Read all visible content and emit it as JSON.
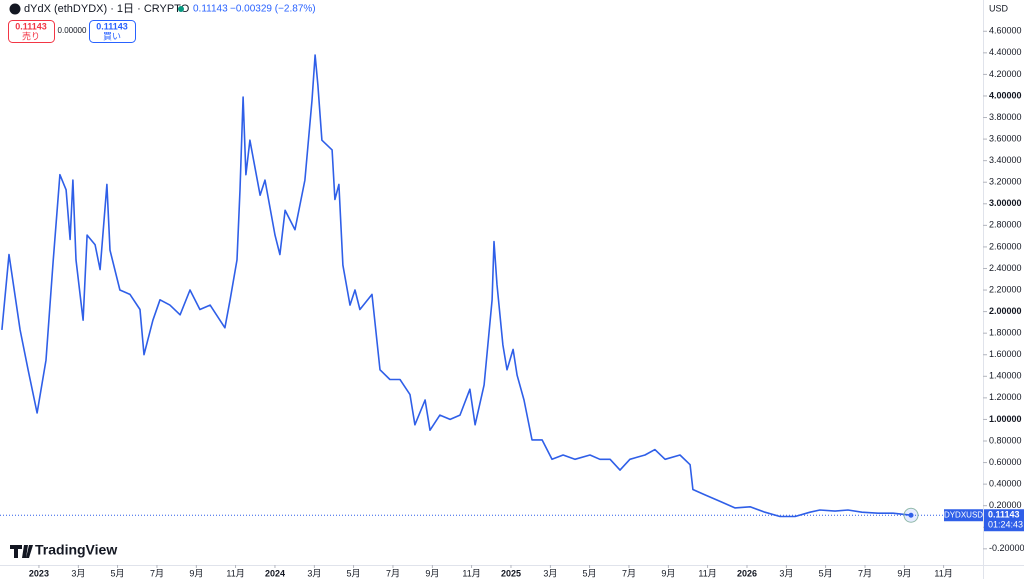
{
  "chart_data": {
    "type": "line",
    "title": "dYdX (ethDYDX) · 1日 · CRYPTO",
    "last_price": "0.11143",
    "change": "−0.00329 (−2.87%)",
    "sell_price": "0.11143",
    "sell_label": "売り",
    "spread": "0.00000",
    "buy_price": "0.11143",
    "buy_label": "買い",
    "currency": "USD",
    "symbol": "DYDXUSD",
    "countdown": "01:24:43",
    "brand": "TradingView",
    "series": [
      {
        "name": "DYDXUSD",
        "color": "#2f5fe8",
        "x": [
          2022.843,
          2022.873,
          2022.92,
          2022.954,
          2022.992,
          2023.03,
          2023.06,
          2023.089,
          2023.115,
          2023.132,
          2023.144,
          2023.157,
          2023.187,
          2023.204,
          2023.238,
          2023.259,
          2023.288,
          2023.301,
          2023.343,
          2023.386,
          2023.428,
          2023.445,
          2023.483,
          2023.513,
          2023.555,
          2023.598,
          2023.64,
          2023.682,
          2023.725,
          2023.788,
          2023.81,
          2023.839,
          2023.852,
          2023.865,
          2023.877,
          2023.894,
          2023.937,
          2023.958,
          2024.0,
          2024.021,
          2024.043,
          2024.085,
          2024.127,
          2024.157,
          2024.17,
          2024.182,
          2024.199,
          2024.242,
          2024.254,
          2024.271,
          2024.288,
          2024.318,
          2024.339,
          2024.36,
          2024.411,
          2024.445,
          2024.487,
          2024.53,
          2024.572,
          2024.593,
          2024.636,
          2024.657,
          2024.699,
          2024.742,
          2024.784,
          2024.826,
          2024.848,
          2024.886,
          2024.92,
          2024.928,
          2024.941,
          2024.966,
          2024.983,
          2025.009,
          2025.026,
          2025.055,
          2025.089,
          2025.132,
          2025.174,
          2025.221,
          2025.271,
          2025.335,
          2025.377,
          2025.42,
          2025.462,
          2025.504,
          2025.568,
          2025.61,
          2025.653,
          2025.716,
          2025.759,
          2025.771,
          2025.822,
          2025.886,
          2025.949,
          2026.013,
          2026.076,
          2026.14,
          2026.204,
          2026.267,
          2026.309,
          2026.373,
          2026.428,
          2026.487,
          2026.555,
          2026.619,
          2026.695
        ],
        "values": [
          1.83,
          2.53,
          1.83,
          1.46,
          1.06,
          1.55,
          2.46,
          3.27,
          3.13,
          2.67,
          3.22,
          2.48,
          1.92,
          2.71,
          2.62,
          2.39,
          3.18,
          2.57,
          2.2,
          2.16,
          2.02,
          1.6,
          1.92,
          2.11,
          2.06,
          1.97,
          2.2,
          2.02,
          2.06,
          1.85,
          2.11,
          2.48,
          3.13,
          3.99,
          3.27,
          3.59,
          3.08,
          3.22,
          2.71,
          2.53,
          2.94,
          2.76,
          3.22,
          3.96,
          4.38,
          4.1,
          3.59,
          3.5,
          3.04,
          3.18,
          2.43,
          2.06,
          2.2,
          2.02,
          2.16,
          1.46,
          1.37,
          1.37,
          1.23,
          0.95,
          1.18,
          0.9,
          1.04,
          1.0,
          1.04,
          1.28,
          0.95,
          1.32,
          2.11,
          2.65,
          2.25,
          1.69,
          1.46,
          1.65,
          1.41,
          1.18,
          0.81,
          0.81,
          0.63,
          0.67,
          0.63,
          0.67,
          0.63,
          0.63,
          0.53,
          0.63,
          0.67,
          0.72,
          0.63,
          0.67,
          0.58,
          0.35,
          0.3,
          0.24,
          0.18,
          0.19,
          0.14,
          0.1,
          0.1,
          0.14,
          0.16,
          0.15,
          0.16,
          0.14,
          0.13,
          0.13,
          0.11143
        ]
      }
    ],
    "xlim": [
      2022.835,
      2027.0
    ],
    "ylim": [
      -0.35,
      4.89
    ],
    "xticks": [
      {
        "value": 2023,
        "label": "2023"
      },
      {
        "value": 2023.167,
        "label": "3月"
      },
      {
        "value": 2023.333,
        "label": "5月"
      },
      {
        "value": 2023.5,
        "label": "7月"
      },
      {
        "value": 2023.667,
        "label": "9月"
      },
      {
        "value": 2023.833,
        "label": "11月"
      },
      {
        "value": 2024,
        "label": "2024"
      },
      {
        "value": 2024.167,
        "label": "3月"
      },
      {
        "value": 2024.333,
        "label": "5月"
      },
      {
        "value": 2024.5,
        "label": "7月"
      },
      {
        "value": 2024.667,
        "label": "9月"
      },
      {
        "value": 2024.833,
        "label": "11月"
      },
      {
        "value": 2025,
        "label": "2025"
      },
      {
        "value": 2025.167,
        "label": "3月"
      },
      {
        "value": 2025.333,
        "label": "5月"
      },
      {
        "value": 2025.5,
        "label": "7月"
      },
      {
        "value": 2025.667,
        "label": "9月"
      },
      {
        "value": 2025.833,
        "label": "11月"
      },
      {
        "value": 2026,
        "label": "2026"
      },
      {
        "value": 2026.167,
        "label": "3月"
      },
      {
        "value": 2026.333,
        "label": "5月"
      },
      {
        "value": 2026.5,
        "label": "7月"
      },
      {
        "value": 2026.667,
        "label": "9月"
      },
      {
        "value": 2026.833,
        "label": "11月"
      }
    ],
    "yticks": [
      {
        "value": -0.2,
        "label": "-0.20000"
      },
      {
        "value": 0,
        "label": "0.00000"
      },
      {
        "value": 0.2,
        "label": "0.20000"
      },
      {
        "value": 0.4,
        "label": "0.40000"
      },
      {
        "value": 0.6,
        "label": "0.60000"
      },
      {
        "value": 0.8,
        "label": "0.80000"
      },
      {
        "value": 1,
        "label": "1.00000"
      },
      {
        "value": 1.2,
        "label": "1.20000"
      },
      {
        "value": 1.4,
        "label": "1.40000"
      },
      {
        "value": 1.6,
        "label": "1.60000"
      },
      {
        "value": 1.8,
        "label": "1.80000"
      },
      {
        "value": 2,
        "label": "2.00000"
      },
      {
        "value": 2.2,
        "label": "2.20000"
      },
      {
        "value": 2.4,
        "label": "2.40000"
      },
      {
        "value": 2.6,
        "label": "2.60000"
      },
      {
        "value": 2.8,
        "label": "2.80000"
      },
      {
        "value": 3,
        "label": "3.00000"
      },
      {
        "value": 3.2,
        "label": "3.20000"
      },
      {
        "value": 3.4,
        "label": "3.40000"
      },
      {
        "value": 3.6,
        "label": "3.60000"
      },
      {
        "value": 3.8,
        "label": "3.80000"
      },
      {
        "value": 4,
        "label": "4.00000"
      },
      {
        "value": 4.2,
        "label": "4.20000"
      },
      {
        "value": 4.4,
        "label": "4.40000"
      },
      {
        "value": 4.6,
        "label": "4.60000"
      }
    ],
    "grid": false
  }
}
